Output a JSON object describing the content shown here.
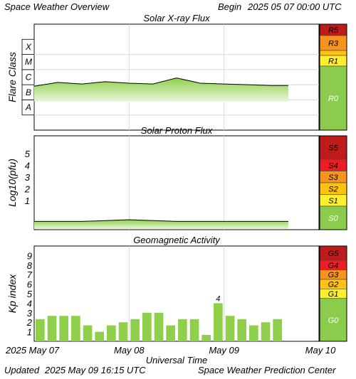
{
  "header": {
    "title": "Space Weather Overview",
    "begin_label": "Begin",
    "begin_value": "2025 05 07 00:00 UTC"
  },
  "footer": {
    "updated_label": "Updated",
    "updated_value": "2025 May 09 16:15 UTC",
    "source": "Space Weather Prediction Center"
  },
  "colors": {
    "data_green": "#8fd04a",
    "gradient_light": "#e6f5d6",
    "scale_0_green": "#8ccc4c",
    "yellow": "#ffef2f",
    "light_orange": "#ffc20e",
    "orange": "#f7941d",
    "red": "#ee1c25",
    "dark_red": "#bf1b1b",
    "grid": "#d8d8d8"
  },
  "chart_data": [
    {
      "type": "area",
      "title": "Solar X-ray Flux",
      "ylabel": "Flare Class",
      "y_scale": "log",
      "y_tick_labels": [
        "A",
        "B",
        "C",
        "M",
        "X"
      ],
      "ylim_log10_wm2": [
        -9,
        -2
      ],
      "x": [
        "2025-05-07 00:00",
        "2025-05-07 06:00",
        "2025-05-07 12:00",
        "2025-05-07 18:00",
        "2025-05-08 00:00",
        "2025-05-08 06:00",
        "2025-05-08 12:00",
        "2025-05-08 18:00",
        "2025-05-09 00:00",
        "2025-05-09 06:00",
        "2025-05-09 12:00",
        "2025-05-09 16:15"
      ],
      "series": [
        {
          "values_log10_wm2": [
            -6.1,
            -5.85,
            -5.95,
            -5.8,
            -5.9,
            -5.95,
            -5.55,
            -5.9,
            -5.95,
            -6.0,
            -6.05,
            -6.05
          ]
        }
      ],
      "scale_labels": [
        "R5",
        "R3",
        "R1",
        "R0"
      ]
    },
    {
      "type": "area",
      "title": "Solar Proton Flux",
      "ylabel": "Log10(pfu)",
      "y_tick_labels": [
        "1",
        "2",
        "3",
        "4",
        "5"
      ],
      "ylim": [
        -1.5,
        6.5
      ],
      "x": [
        "2025-05-07 00:00",
        "2025-05-07 12:00",
        "2025-05-08 00:00",
        "2025-05-08 12:00",
        "2025-05-09 00:00",
        "2025-05-09 12:00",
        "2025-05-09 16:15"
      ],
      "series": [
        {
          "values": [
            -0.8,
            -0.8,
            -0.65,
            -0.8,
            -0.8,
            -0.8,
            -0.8
          ]
        }
      ],
      "scale_labels": [
        "S5",
        "S4",
        "S3",
        "S2",
        "S1",
        "S0"
      ]
    },
    {
      "type": "bar",
      "title": "Geomagnetic Activity",
      "ylabel": "Kp index",
      "y_tick_labels": [
        "1",
        "2",
        "3",
        "4",
        "5",
        "6",
        "7",
        "8",
        "9"
      ],
      "ylim": [
        0,
        10
      ],
      "x_tick_labels": [
        "2025 May 07",
        "May 08",
        "May 09",
        "May 10"
      ],
      "xlabel": "Universal Time",
      "values": [
        2.33,
        2.67,
        2.67,
        2.67,
        1.67,
        1.0,
        1.67,
        2.0,
        2.33,
        3.0,
        3.0,
        1.67,
        2.33,
        2.33,
        0.67,
        4.0,
        2.67,
        2.33,
        1.67,
        2.0,
        2.33
      ],
      "annotations": [
        {
          "bar_index": 15,
          "text": "4"
        }
      ],
      "scale_labels": [
        "G5",
        "G4",
        "G3",
        "G2",
        "G1",
        "G0"
      ]
    }
  ]
}
